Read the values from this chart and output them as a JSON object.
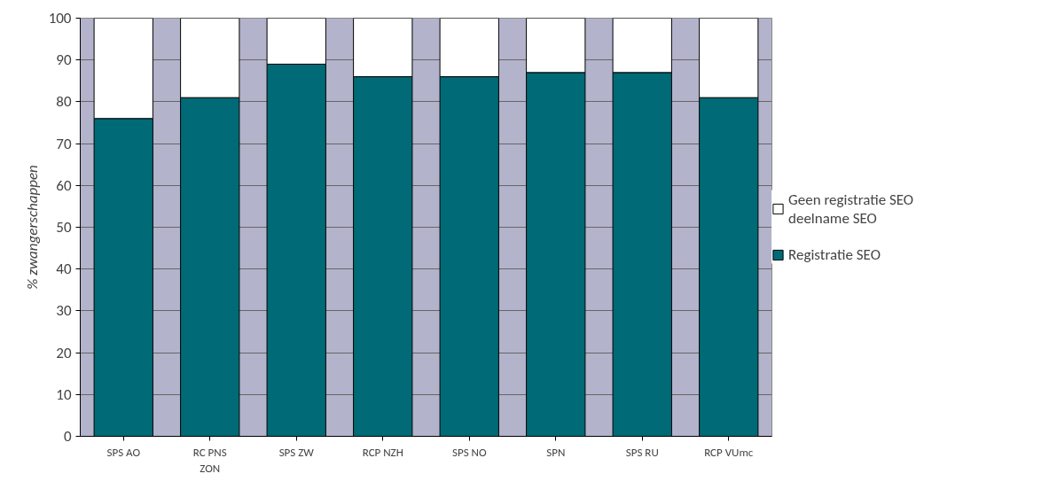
{
  "chart_data": {
    "type": "bar",
    "stacked": true,
    "ylabel": "% zwangerschappen",
    "categories": [
      "SPS AO",
      "RC PNS ZON",
      "SPS ZW",
      "RCP NZH",
      "SPS NO",
      "SPN",
      "SPS RU",
      "RCP VUmc"
    ],
    "series": [
      {
        "name": "Registratie SEO",
        "color": "#006a76",
        "values": [
          76,
          81,
          89,
          86,
          86,
          87,
          87,
          81
        ]
      },
      {
        "name": "Geen registratie SEO deelname SEO",
        "color": "#ffffff",
        "values": [
          24,
          19,
          11,
          14,
          14,
          13,
          13,
          19
        ]
      }
    ],
    "ylim": [
      0,
      100
    ],
    "yticks": [
      0,
      10,
      20,
      30,
      40,
      50,
      60,
      70,
      80,
      90,
      100
    ],
    "grid": "y",
    "legend": "right"
  }
}
